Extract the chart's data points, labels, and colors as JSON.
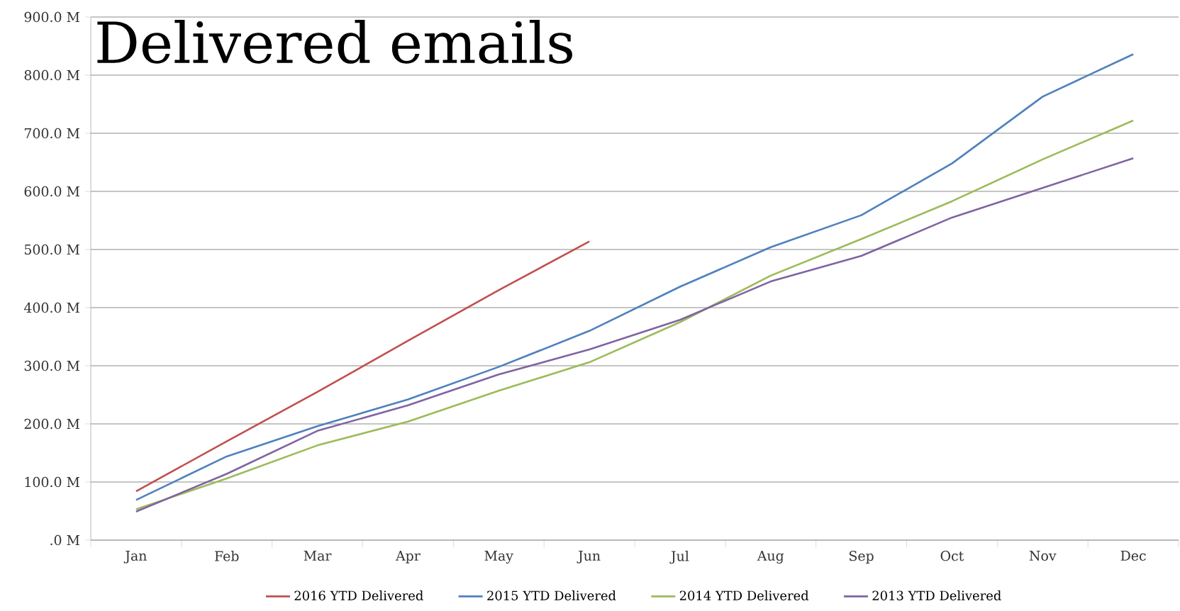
{
  "chart_data": {
    "type": "line",
    "title": "Delivered emails",
    "categories": [
      "Jan",
      "Feb",
      "Mar",
      "Apr",
      "May",
      "Jun",
      "Jul",
      "Aug",
      "Sep",
      "Oct",
      "Nov",
      "Dec"
    ],
    "series": [
      {
        "name": "2016 YTD Delivered",
        "color": "#c0504d",
        "values": [
          84,
          170,
          255,
          343,
          430,
          514,
          null,
          null,
          null,
          null,
          null,
          null
        ]
      },
      {
        "name": "2015 YTD Delivered",
        "color": "#4f81bd",
        "values": [
          69,
          144,
          196,
          242,
          298,
          360,
          436,
          504,
          559,
          648,
          763,
          836
        ]
      },
      {
        "name": "2014 YTD Delivered",
        "color": "#9bbb59",
        "values": [
          53,
          106,
          163,
          204,
          257,
          306,
          375,
          455,
          518,
          583,
          655,
          722
        ]
      },
      {
        "name": "2013 YTD Delivered",
        "color": "#8064a2",
        "values": [
          49,
          114,
          188,
          232,
          285,
          328,
          379,
          445,
          489,
          555,
          606,
          657
        ]
      }
    ],
    "ylim": [
      0,
      900
    ],
    "yticks": [
      {
        "value": 0,
        "label": ".0 M"
      },
      {
        "value": 100,
        "label": "100.0 M"
      },
      {
        "value": 200,
        "label": "200.0 M"
      },
      {
        "value": 300,
        "label": "300.0 M"
      },
      {
        "value": 400,
        "label": "400.0 M"
      },
      {
        "value": 500,
        "label": "500.0 M"
      },
      {
        "value": 600,
        "label": "600.0 M"
      },
      {
        "value": 700,
        "label": "700.0 M"
      },
      {
        "value": 800,
        "label": "800.0 M"
      },
      {
        "value": 900,
        "label": "900.0 M"
      }
    ],
    "grid": "y",
    "legend": "bottom",
    "marker": "none",
    "line_style": "solid"
  }
}
